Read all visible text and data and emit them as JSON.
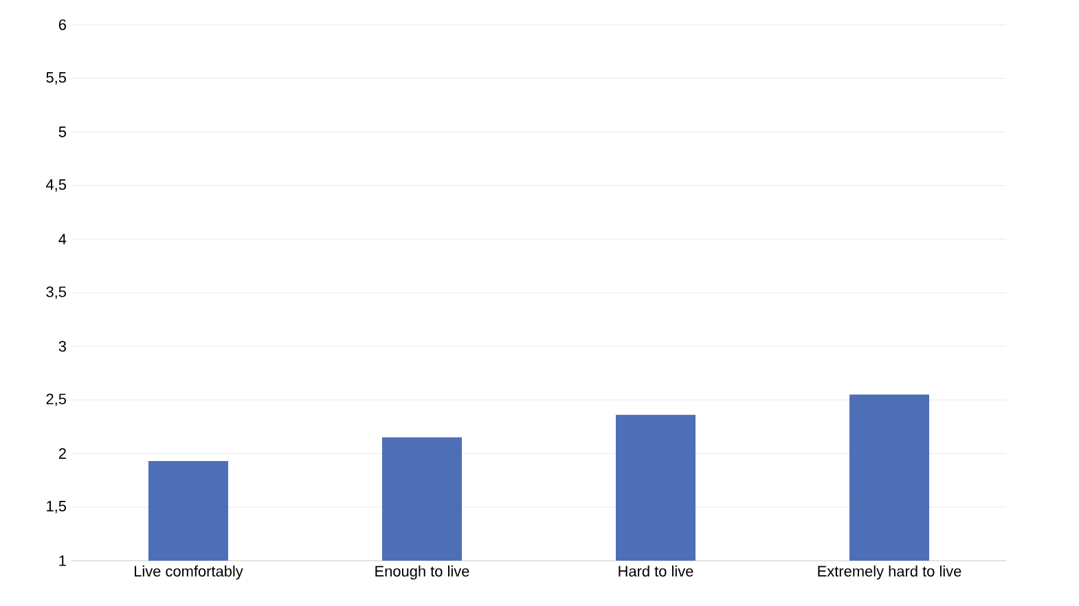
{
  "chart_data": {
    "type": "bar",
    "categories": [
      "Live comfortably",
      "Enough to live",
      "Hard to live",
      "Extremely hard to live"
    ],
    "values": [
      1.93,
      2.15,
      2.36,
      2.55
    ],
    "color": "#4e6fb7",
    "ylim": [
      1,
      6
    ],
    "yticks": [
      1,
      {
        "value": 1.5,
        "label": "1,5"
      },
      2,
      {
        "value": 2.5,
        "label": "2,5"
      },
      3,
      {
        "value": 3.5,
        "label": "3,5"
      },
      4,
      {
        "value": 4.5,
        "label": "4,5"
      },
      5,
      {
        "value": 5.5,
        "label": "5,5"
      },
      6
    ],
    "grid": "y"
  }
}
